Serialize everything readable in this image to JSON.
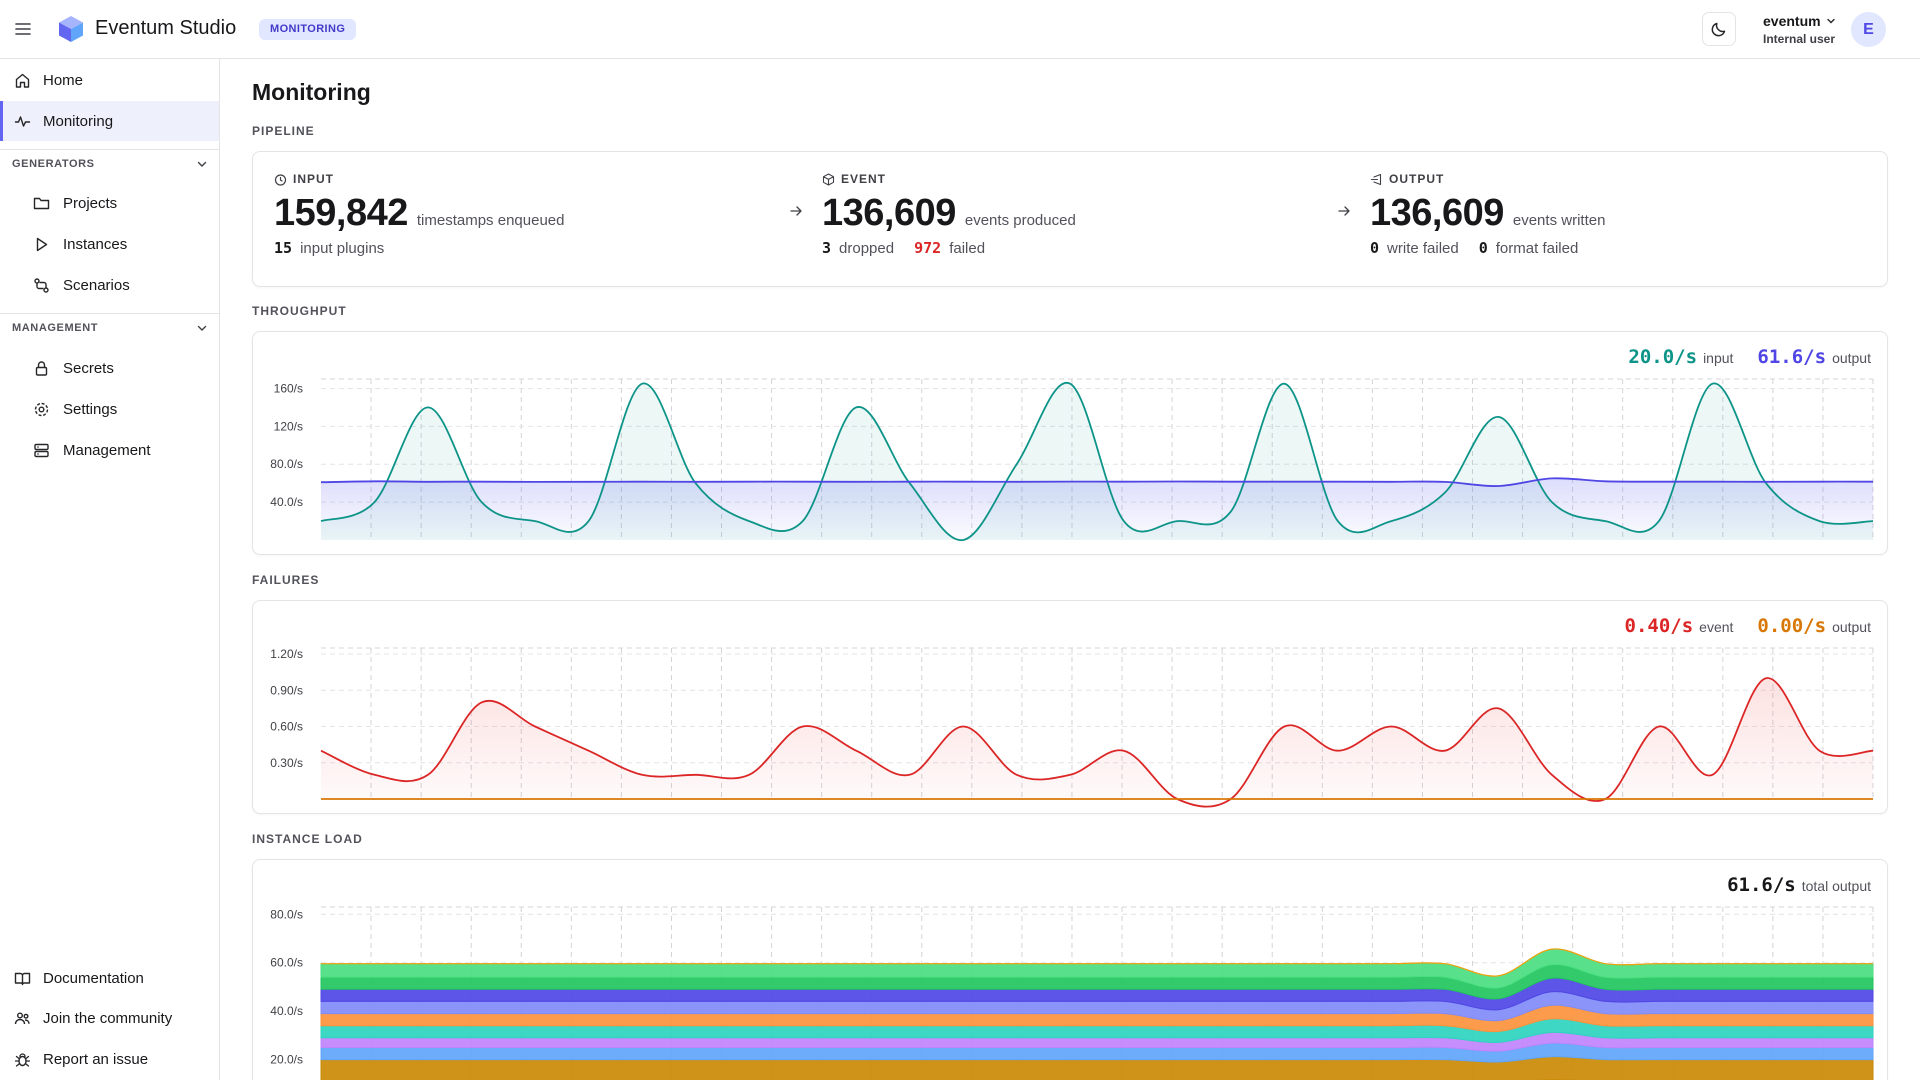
{
  "header": {
    "app_title": "Eventum Studio",
    "page_badge": "MONITORING",
    "user_name": "eventum",
    "user_role": "Internal user",
    "avatar_initial": "E"
  },
  "sidebar": {
    "home": "Home",
    "monitoring": "Monitoring",
    "generators_label": "GENERATORS",
    "projects": "Projects",
    "instances": "Instances",
    "scenarios": "Scenarios",
    "management_label": "MANAGEMENT",
    "secrets": "Secrets",
    "settings": "Settings",
    "management": "Management",
    "documentation": "Documentation",
    "community": "Join the community",
    "report": "Report an issue"
  },
  "main": {
    "title": "Monitoring",
    "pipeline_label": "PIPELINE",
    "throughput_label": "THROUGHPUT",
    "failures_label": "FAILURES",
    "instance_load_label": "INSTANCE LOAD"
  },
  "pipeline": {
    "input": {
      "head": "INPUT",
      "value": "159,842",
      "unit": "timestamps enqueued",
      "sub1_n": "15",
      "sub1_l": "input plugins"
    },
    "event": {
      "head": "EVENT",
      "value": "136,609",
      "unit": "events produced",
      "sub1_n": "3",
      "sub1_l": "dropped",
      "sub2_n": "972",
      "sub2_l": "failed"
    },
    "output": {
      "head": "OUTPUT",
      "value": "136,609",
      "unit": "events written",
      "sub1_n": "0",
      "sub1_l": "write failed",
      "sub2_n": "0",
      "sub2_l": "format failed"
    }
  },
  "throughput": {
    "input_rate": "20.0/s",
    "input_label": "input",
    "output_rate": "61.6/s",
    "output_label": "output"
  },
  "failures": {
    "event_rate": "0.40/s",
    "event_label": "event",
    "output_rate": "0.00/s",
    "output_label": "output"
  },
  "instance_load": {
    "total_rate": "61.6/s",
    "total_label": "total output"
  },
  "colors": {
    "accent": "#6366f1",
    "input": "#0d9488",
    "output": "#4f46e5",
    "fail_event": "#dc2626",
    "fail_output": "#d97706"
  },
  "chart_data": [
    {
      "type": "area",
      "name": "throughput",
      "y_ticks": [
        "160/s",
        "120/s",
        "80.0/s",
        "40.0/s"
      ],
      "y_tick_values": [
        160,
        120,
        80,
        40
      ],
      "ylim": [
        0,
        170
      ],
      "grid": true,
      "x": [
        0,
        1,
        2,
        3,
        4,
        5,
        6,
        7,
        8,
        9,
        10,
        11,
        12,
        13,
        14,
        15,
        16,
        17,
        18,
        19,
        20,
        21,
        22,
        23,
        24,
        25,
        26,
        27,
        28,
        29
      ],
      "series": [
        {
          "name": "input",
          "values": [
            20,
            40,
            140,
            40,
            20,
            20,
            165,
            60,
            20,
            20,
            140,
            60,
            0,
            80,
            165,
            20,
            20,
            30,
            165,
            20,
            20,
            50,
            130,
            40,
            20,
            20,
            165,
            60,
            20,
            20
          ],
          "color": "#0d9488"
        },
        {
          "name": "output",
          "values": [
            61,
            62,
            61.5,
            61.6,
            61.4,
            61.5,
            61.6,
            61.5,
            61.6,
            61.6,
            61.5,
            61.6,
            61.6,
            61.5,
            61.7,
            61.6,
            61.8,
            61.6,
            61.6,
            61.6,
            61.5,
            61.4,
            57,
            65,
            62,
            61.6,
            61.6,
            61.5,
            61.6,
            61.6
          ],
          "color": "#4f46e5"
        }
      ]
    },
    {
      "type": "area",
      "name": "failures",
      "y_ticks": [
        "1.20/s",
        "0.90/s",
        "0.60/s",
        "0.30/s"
      ],
      "y_tick_values": [
        1.2,
        0.9,
        0.6,
        0.3
      ],
      "ylim": [
        0,
        1.25
      ],
      "grid": true,
      "x": [
        0,
        1,
        2,
        3,
        4,
        5,
        6,
        7,
        8,
        9,
        10,
        11,
        12,
        13,
        14,
        15,
        16,
        17,
        18,
        19,
        20,
        21,
        22,
        23,
        24,
        25,
        26,
        27,
        28,
        29
      ],
      "series": [
        {
          "name": "event",
          "values": [
            0.4,
            0.2,
            0.2,
            0.8,
            0.6,
            0.4,
            0.2,
            0.2,
            0.2,
            0.6,
            0.4,
            0.2,
            0.6,
            0.2,
            0.2,
            0.4,
            0.0,
            0.0,
            0.6,
            0.4,
            0.6,
            0.4,
            0.75,
            0.2,
            0.0,
            0.6,
            0.2,
            1.0,
            0.4,
            0.4
          ],
          "color": "#dc2626"
        },
        {
          "name": "output",
          "values": [
            0,
            0,
            0,
            0,
            0,
            0,
            0,
            0,
            0,
            0,
            0,
            0,
            0,
            0,
            0,
            0,
            0,
            0,
            0,
            0,
            0,
            0,
            0,
            0,
            0,
            0,
            0,
            0,
            0,
            0
          ],
          "color": "#d97706"
        }
      ]
    },
    {
      "type": "area",
      "name": "instance load",
      "stacked": true,
      "y_ticks": [
        "80.0/s",
        "60.0/s",
        "40.0/s",
        "20.0/s"
      ],
      "y_tick_values": [
        80,
        60,
        40,
        20
      ],
      "ylim": [
        0,
        83
      ],
      "grid": true,
      "x": [
        0,
        1,
        2,
        3,
        4,
        5,
        6,
        7,
        8,
        9,
        10,
        11,
        12,
        13,
        14,
        15,
        16,
        17,
        18,
        19,
        20,
        21,
        22,
        23,
        24,
        25,
        26,
        27,
        28,
        29
      ],
      "series_values": [
        [
          3,
          3,
          3,
          3,
          3,
          3,
          3,
          3,
          3,
          3,
          3,
          3,
          3,
          3,
          3,
          3,
          3,
          3,
          3,
          3,
          3,
          3,
          3,
          3,
          3,
          3,
          3,
          3,
          3,
          3
        ],
        [
          8,
          8,
          8,
          8,
          8,
          8,
          8,
          8,
          8,
          8,
          8,
          8,
          8,
          8,
          8,
          8,
          8,
          8,
          8,
          8,
          8,
          8,
          7.5,
          8.6,
          8,
          8,
          8,
          8,
          8,
          8
        ],
        [
          9,
          9,
          9,
          9,
          9,
          9,
          9,
          9,
          9,
          9,
          9,
          9,
          9,
          9,
          9,
          9,
          9,
          9,
          9,
          9,
          9,
          9,
          8.5,
          9.6,
          9,
          9,
          9,
          9,
          9,
          9
        ],
        [
          5,
          5,
          5,
          5,
          5,
          5,
          5,
          5,
          5,
          5,
          5,
          5,
          5,
          5,
          5,
          5,
          5,
          5,
          5,
          5,
          5,
          5,
          4.5,
          5.6,
          5,
          5,
          5,
          5,
          5,
          5
        ],
        [
          4,
          4,
          4,
          4,
          4,
          4,
          4,
          4,
          4,
          4,
          4,
          4,
          4,
          4,
          4,
          4,
          4,
          4,
          4,
          4,
          4,
          4,
          3.6,
          4.4,
          4,
          4,
          4,
          4,
          4,
          4
        ],
        [
          5,
          5,
          5,
          5,
          5,
          5,
          5,
          5,
          5,
          5,
          5,
          5,
          5,
          5,
          5,
          5,
          5,
          5,
          5,
          5,
          5,
          5,
          4.5,
          5.6,
          5,
          5,
          5,
          5,
          5,
          5
        ],
        [
          5,
          5,
          5,
          5,
          5,
          5,
          5,
          5,
          5,
          5,
          5,
          5,
          5,
          5,
          5,
          5,
          5,
          5,
          5,
          5,
          5,
          5,
          4.5,
          5.6,
          5,
          5,
          5,
          5,
          5,
          5
        ],
        [
          5,
          5,
          5,
          5,
          5,
          5,
          5,
          5,
          5,
          5,
          5,
          5,
          5,
          5,
          5,
          5,
          5,
          5,
          5,
          5,
          5,
          5,
          4.5,
          5.6,
          5,
          5,
          5,
          5,
          5,
          5
        ],
        [
          5,
          5,
          5,
          5,
          5,
          5,
          5,
          5,
          5,
          5,
          5,
          5,
          5,
          5,
          5,
          5,
          5,
          5,
          5,
          5,
          5,
          5,
          4.5,
          5.6,
          5,
          5,
          5,
          5,
          5,
          5
        ],
        [
          5,
          5,
          5,
          5,
          5,
          5,
          5,
          5,
          5,
          5,
          5,
          5,
          5,
          5,
          5,
          5,
          5,
          5,
          5,
          5,
          5,
          5,
          4.5,
          5.6,
          5,
          5,
          5,
          5,
          5,
          5
        ],
        [
          5.6,
          5.6,
          5.6,
          5.6,
          5.6,
          5.6,
          5.6,
          5.6,
          5.6,
          5.6,
          5.6,
          5.6,
          5.6,
          5.6,
          5.6,
          5.6,
          5.6,
          5.6,
          5.6,
          5.6,
          5.6,
          5.6,
          5,
          6.4,
          5.6,
          5.6,
          5.6,
          5.6,
          5.6,
          5.6
        ]
      ],
      "colors": [
        "#2563eb",
        "#16a34a",
        "#ca8a04",
        "#60a5fa",
        "#c084fc",
        "#2dd4bf",
        "#fb923c",
        "#818cf8",
        "#4f46e5",
        "#22c55e",
        "#4ade80"
      ]
    }
  ]
}
